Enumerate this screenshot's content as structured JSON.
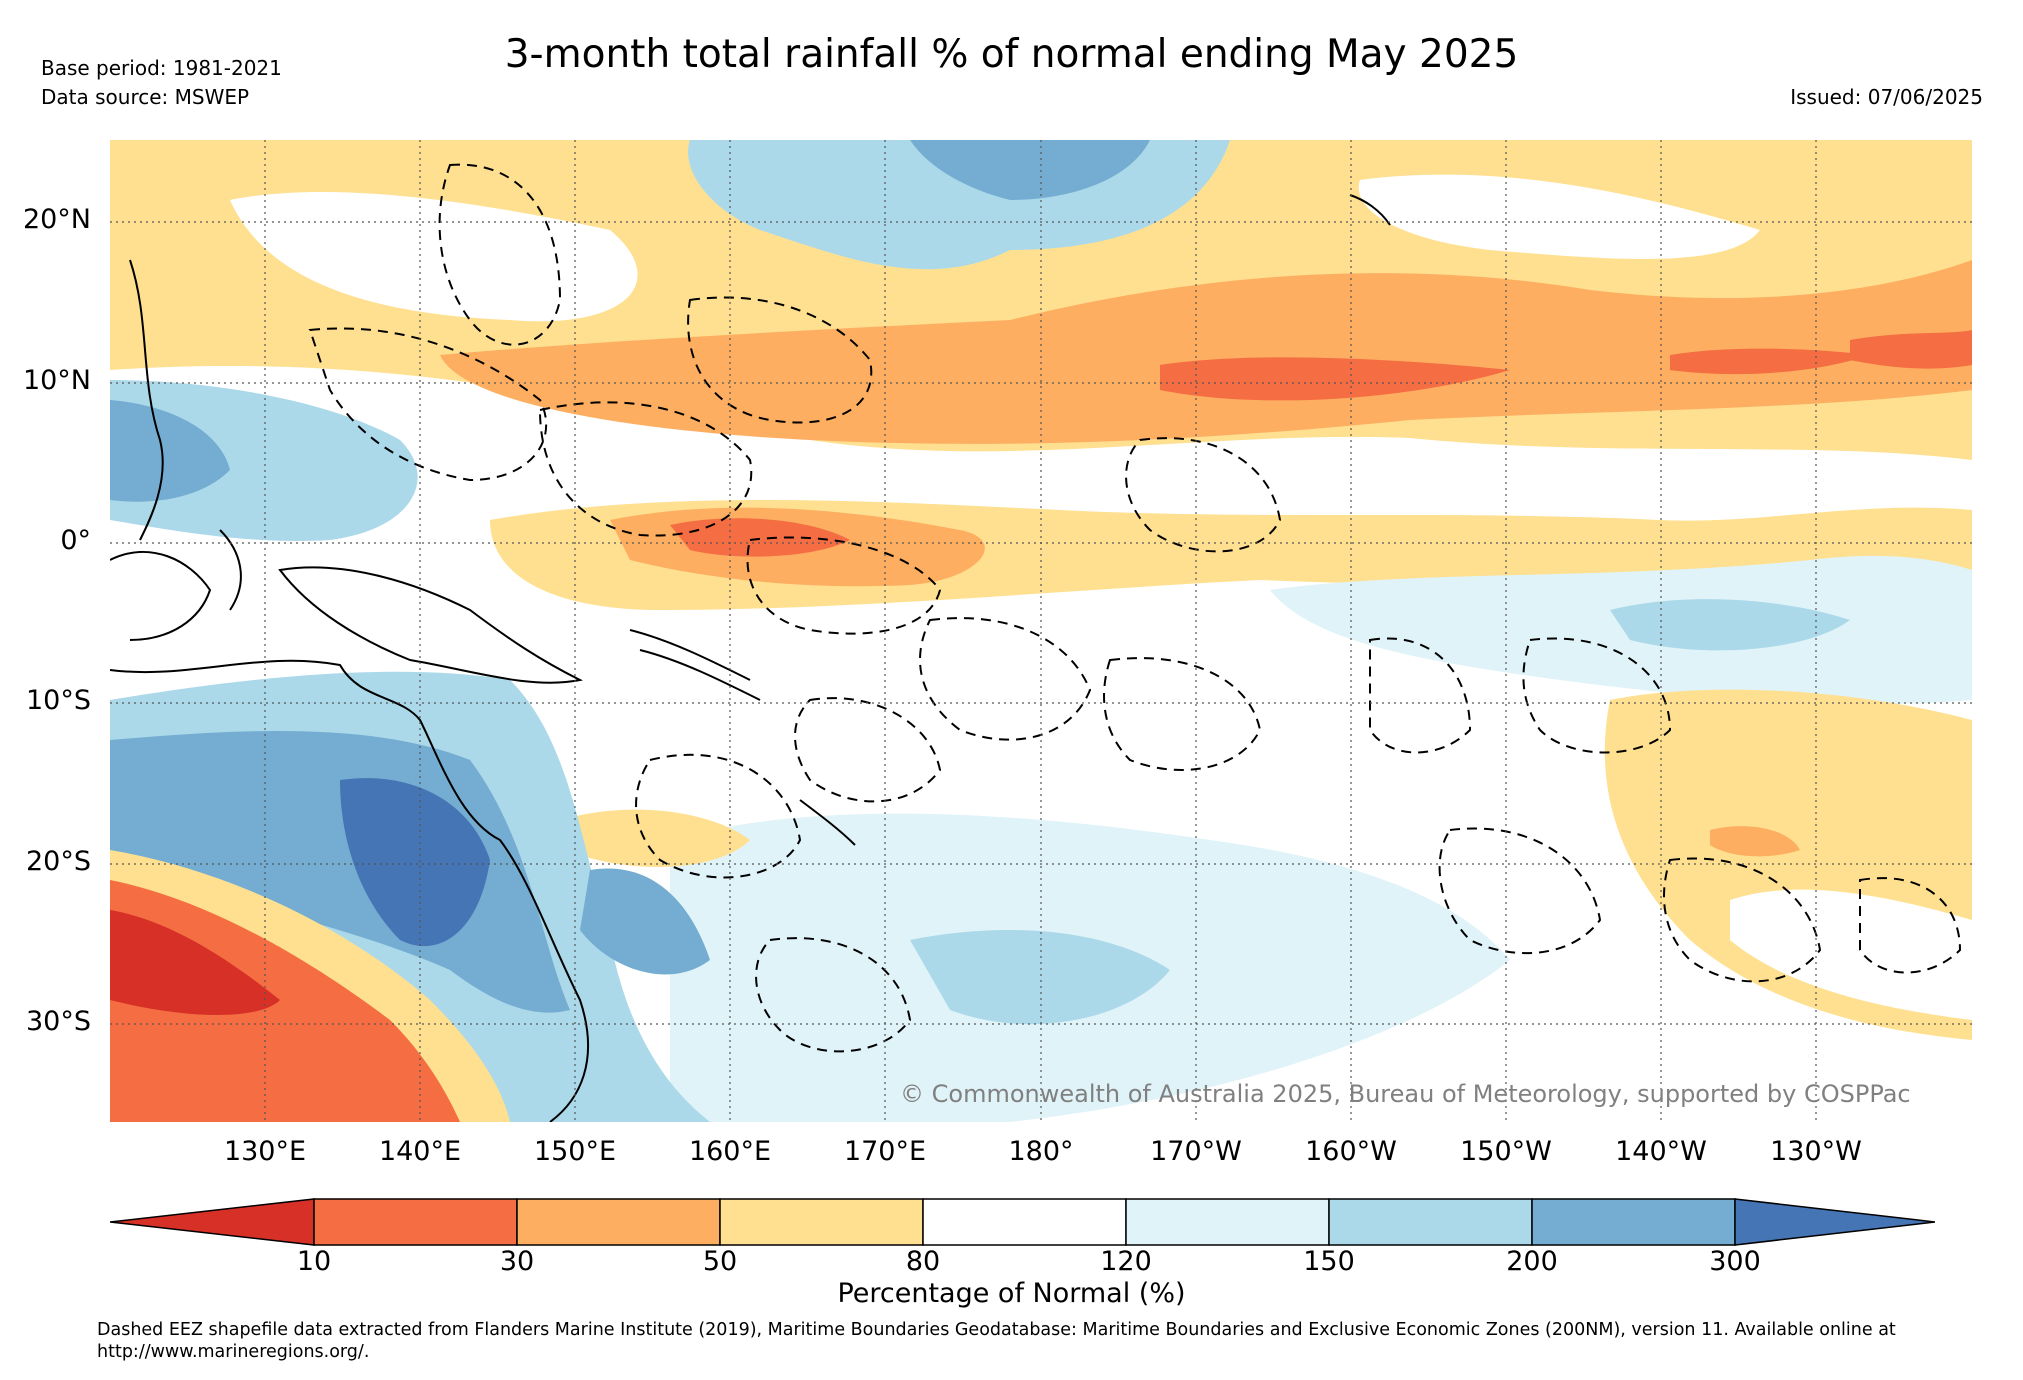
{
  "title": "3-month total rainfall % of normal ending May 2025",
  "base_period": "Base period: 1981-2021",
  "data_source": "Data source: MSWEP",
  "issued": "Issued: 07/06/2025",
  "copyright": "© Commonwealth of Australia 2025, Bureau of Meteorology, supported by COSPPac",
  "map": {
    "lat_labels": [
      "20°N",
      "10°N",
      "0°",
      "10°S",
      "20°S",
      "30°S"
    ],
    "lon_labels": [
      "130°E",
      "140°E",
      "150°E",
      "160°E",
      "170°E",
      "180°",
      "170°W",
      "160°W",
      "150°W",
      "140°W",
      "130°W"
    ]
  },
  "colorbar": {
    "label": "Percentage of Normal (%)",
    "ticks": [
      "10",
      "30",
      "50",
      "80",
      "120",
      "150",
      "200",
      "300"
    ],
    "colors": [
      "#d73027",
      "#f46d43",
      "#fdae61",
      "#fee090",
      "#ffffff",
      "#e0f3f8",
      "#abd9e9",
      "#74add1",
      "#4575b4"
    ]
  },
  "footer": "Dashed EEZ shapefile data extracted from Flanders Marine Institute (2019), Maritime Boundaries Geodatabase: Maritime Boundaries and Exclusive Economic Zones (200NM), version 11. Available online at http://www.marineregions.org/."
}
